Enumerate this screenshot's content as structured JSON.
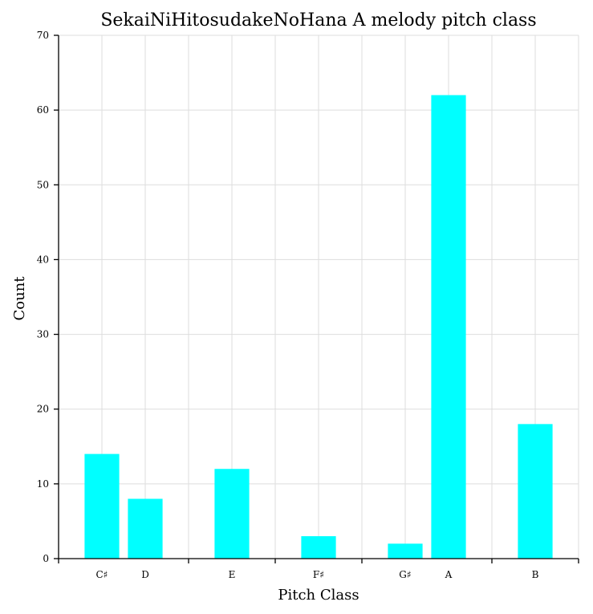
{
  "chart_data": {
    "type": "bar",
    "title": "SekaiNiHitosudakeNoHana A melody pitch class",
    "xlabel": "Pitch Class",
    "ylabel": "Count",
    "ylim": [
      0,
      70
    ],
    "yticks": [
      0,
      10,
      20,
      30,
      40,
      50,
      60,
      70
    ],
    "x_positions": [
      1,
      1.5,
      2.5,
      3.5,
      4.5,
      5,
      6
    ],
    "xlim": [
      0.5,
      6.5
    ],
    "x_major_ticks": [
      0.5,
      2,
      3,
      4,
      5.5,
      6.5
    ],
    "categories": [
      "C♯",
      "D",
      "E",
      "F♯",
      "G♯",
      "A",
      "B"
    ],
    "values": [
      14,
      8,
      12,
      3,
      2,
      62,
      18
    ],
    "bar_color": "#00ffff",
    "grid": true
  }
}
